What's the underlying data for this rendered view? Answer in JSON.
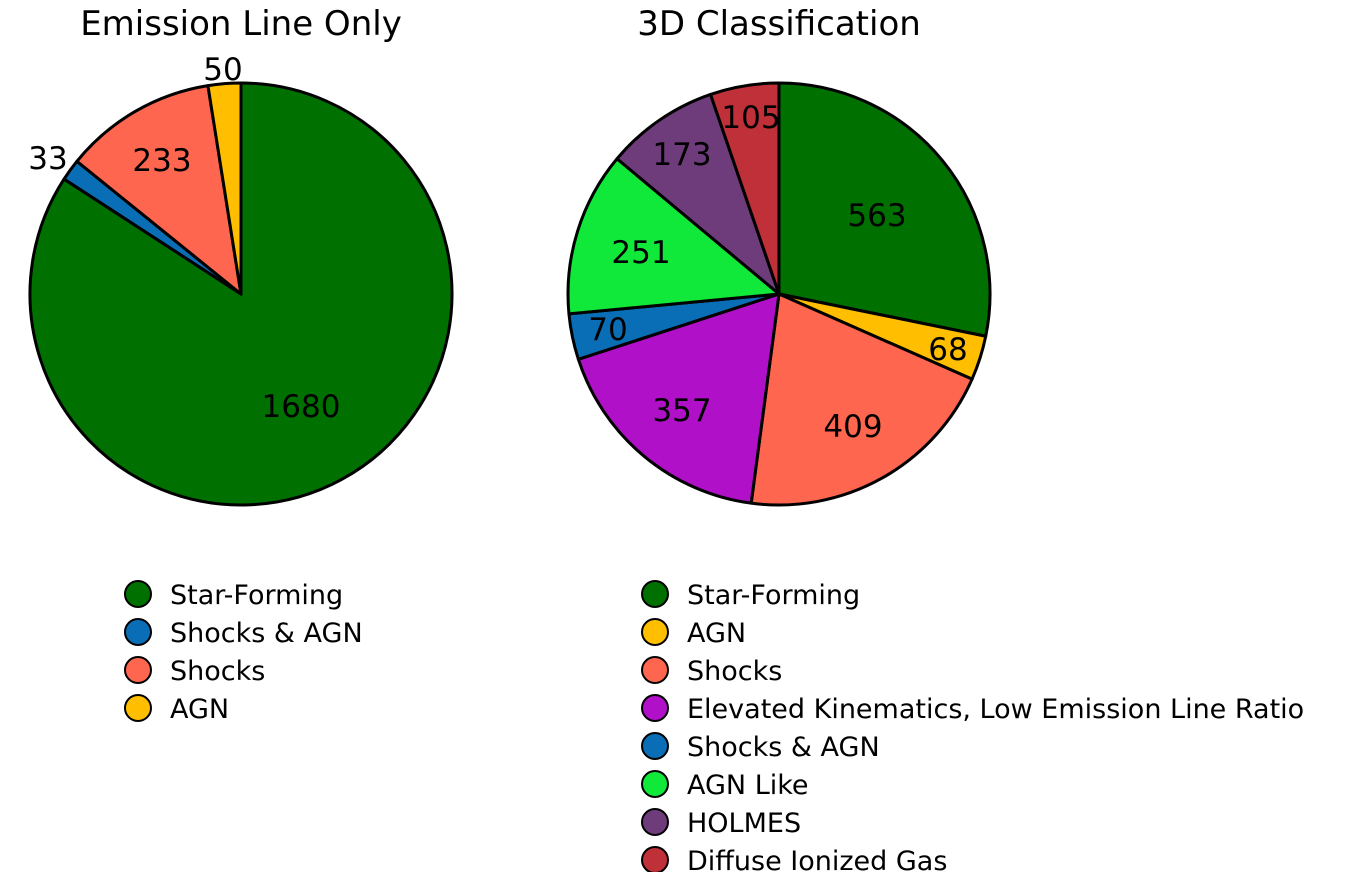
{
  "chart_data": [
    {
      "type": "pie",
      "title": "Emission Line Only",
      "start_angle_deg": 90,
      "direction": "clockwise",
      "legend_placement": "below",
      "slices": [
        {
          "label": "Star-Forming",
          "value": 1680,
          "color": "#007000"
        },
        {
          "label": "Shocks & AGN",
          "value": 33,
          "color": "#0a6eb6"
        },
        {
          "label": "Shocks",
          "value": 233,
          "color": "#ff6650"
        },
        {
          "label": "AGN",
          "value": 50,
          "color": "#ffbf00"
        }
      ]
    },
    {
      "type": "pie",
      "title": "3D Classification",
      "start_angle_deg": 90,
      "direction": "clockwise",
      "legend_placement": "below",
      "slices": [
        {
          "label": "Star-Forming",
          "value": 563,
          "color": "#007000"
        },
        {
          "label": "AGN",
          "value": 68,
          "color": "#ffbf00"
        },
        {
          "label": "Shocks",
          "value": 409,
          "color": "#ff6650"
        },
        {
          "label": "Elevated Kinematics, Low Emission Line Ratio",
          "value": 357,
          "color": "#b010c8"
        },
        {
          "label": "Shocks & AGN",
          "value": 70,
          "color": "#0a6eb6"
        },
        {
          "label": "AGN Like",
          "value": 251,
          "color": "#10e83a"
        },
        {
          "label": "HOLMES",
          "value": 173,
          "color": "#6e3c7a"
        },
        {
          "label": "Diffuse Ionized Gas",
          "value": 105,
          "color": "#c03038"
        }
      ]
    }
  ]
}
